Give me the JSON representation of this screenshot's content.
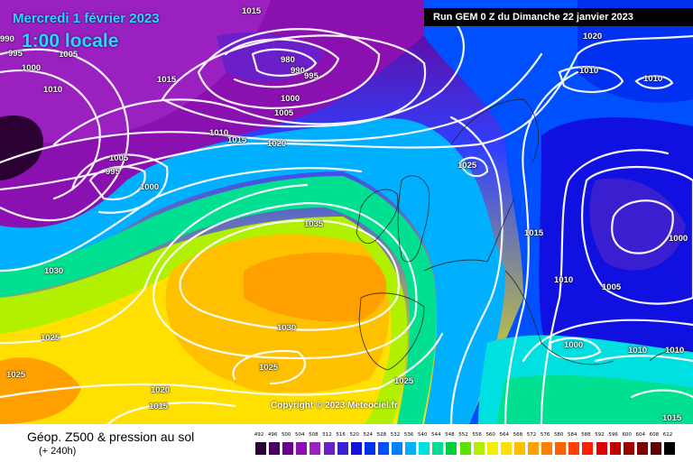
{
  "header": {
    "date": "Mercredi 1 février 2023",
    "time": "1:00 locale",
    "run": "Run GEM 0 Z du Dimanche 22 janvier 2023"
  },
  "footer": {
    "title": "Géop. Z500 & pression au sol",
    "subtitle": "(+ 240h)",
    "copyright": "Copyright © 2023 Meteociel.fr"
  },
  "legend": {
    "ticks": [
      "492",
      "496",
      "500",
      "504",
      "508",
      "512",
      "516",
      "520",
      "524",
      "528",
      "532",
      "536",
      "540",
      "544",
      "548",
      "552",
      "556",
      "560",
      "564",
      "568",
      "572",
      "576",
      "580",
      "584",
      "588",
      "592",
      "596",
      "600",
      "604",
      "608",
      "612"
    ],
    "colors": [
      "#2b0033",
      "#4a0060",
      "#6a0090",
      "#8a10b0",
      "#9a20c0",
      "#6a1fc8",
      "#3a1fd0",
      "#1010e0",
      "#0030f0",
      "#0050ff",
      "#0080ff",
      "#00b0ff",
      "#00e0e0",
      "#00e090",
      "#00d040",
      "#60e000",
      "#b0f000",
      "#f0f000",
      "#ffe000",
      "#ffc000",
      "#ffa000",
      "#ff8000",
      "#ff6000",
      "#ff4000",
      "#ff2000",
      "#e00000",
      "#c00000",
      "#a00000",
      "#800000",
      "#600000",
      "#000000"
    ]
  },
  "contours": [
    {
      "text": "1015"
    },
    {
      "text": "1005"
    },
    {
      "text": "995"
    },
    {
      "text": "1000"
    },
    {
      "text": "990"
    },
    {
      "text": "1010"
    },
    {
      "text": "1015"
    },
    {
      "text": "980"
    },
    {
      "text": "990"
    },
    {
      "text": "995"
    },
    {
      "text": "1000"
    },
    {
      "text": "1005"
    },
    {
      "text": "1010"
    },
    {
      "text": "1015"
    },
    {
      "text": "1020"
    },
    {
      "text": "1005"
    },
    {
      "text": "995"
    },
    {
      "text": "1000"
    },
    {
      "text": "1035"
    },
    {
      "text": "1030"
    },
    {
      "text": "1030"
    },
    {
      "text": "1025"
    },
    {
      "text": "1025"
    },
    {
      "text": "1025"
    },
    {
      "text": "1020"
    },
    {
      "text": "1015"
    },
    {
      "text": "1025"
    },
    {
      "text": "1020"
    },
    {
      "text": "1010"
    },
    {
      "text": "1010"
    },
    {
      "text": "1025"
    },
    {
      "text": "1015"
    },
    {
      "text": "1010"
    },
    {
      "text": "1005"
    },
    {
      "text": "1000"
    },
    {
      "text": "1000"
    },
    {
      "text": "1010"
    },
    {
      "text": "1010"
    },
    {
      "text": "1015"
    },
    {
      "text": "1025"
    }
  ]
}
